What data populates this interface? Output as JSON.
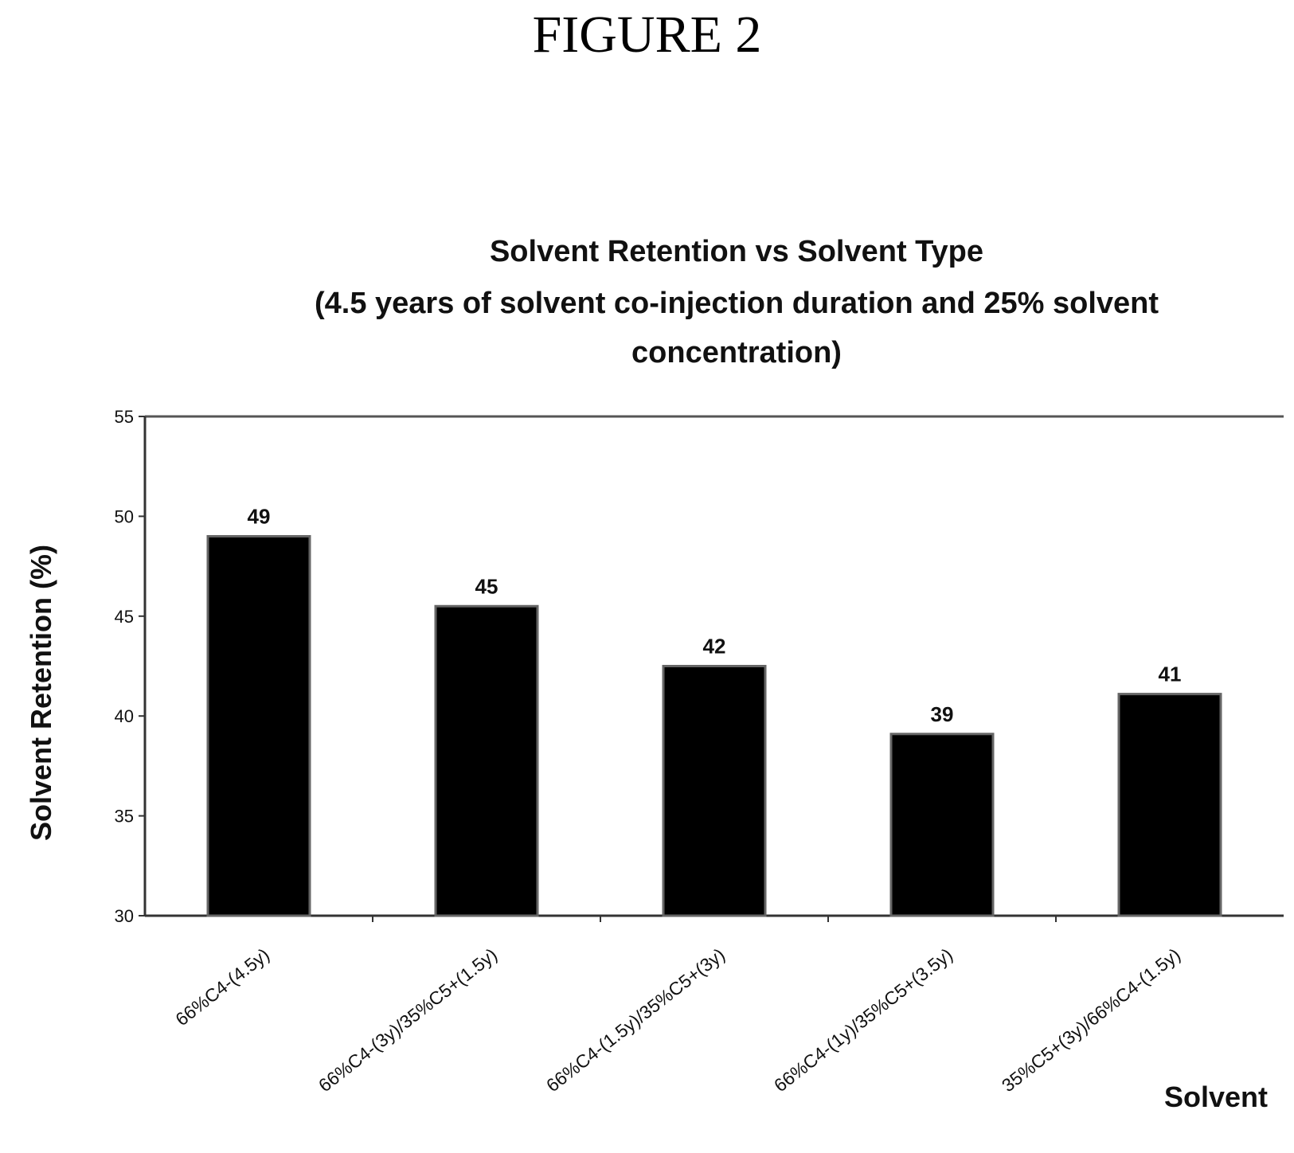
{
  "figure_label": "FIGURE 2",
  "chart_data": {
    "type": "bar",
    "title": "Solvent Retention vs Solvent Type",
    "subtitle_lines": [
      "(4.5 years of solvent co-injection duration and 25% solvent",
      "concentration)"
    ],
    "xlabel": "Solvent",
    "ylabel": "Solvent  Retention (%)",
    "categories": [
      "66%C4-(4.5y)",
      "66%C4-(3y)/35%C5+(1.5y)",
      "66%C4-(1.5y)/35%C5+(3y)",
      "66%C4-(1y)/35%C5+(3.5y)",
      "35%C5+(3y)/66%C4-(1.5y)"
    ],
    "values": [
      49,
      45.5,
      42.5,
      39.1,
      41.1
    ],
    "data_labels": [
      "49",
      "45",
      "42",
      "39",
      "41"
    ],
    "ylim": [
      30,
      55
    ],
    "yticks": [
      30,
      35,
      40,
      45,
      50,
      55
    ],
    "grid": false,
    "bar_color": "#000000"
  }
}
